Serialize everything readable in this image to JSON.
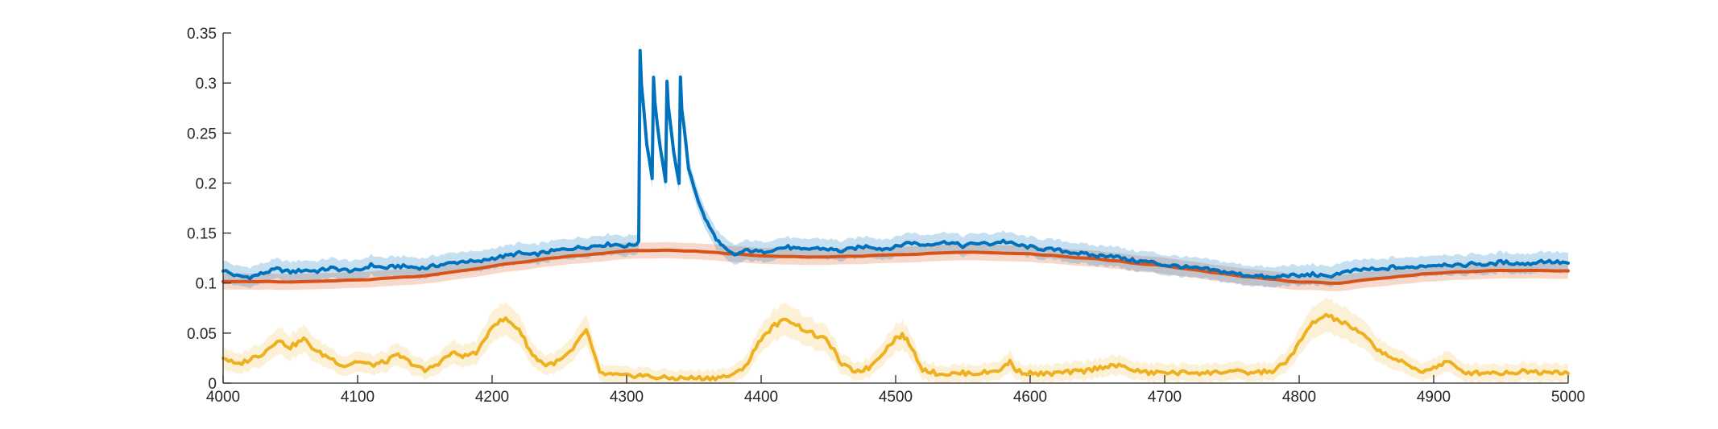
{
  "chart_data": {
    "type": "line",
    "title": "",
    "xlabel": "",
    "ylabel": "",
    "xlim": [
      4000,
      5000
    ],
    "ylim": [
      0,
      0.35
    ],
    "grid": false,
    "legend": "none",
    "x_ticks": [
      "4000",
      "4100",
      "4200",
      "4300",
      "4400",
      "4500",
      "4600",
      "4700",
      "4800",
      "4900",
      "5000"
    ],
    "y_ticks": [
      "0",
      "0.05",
      "0.1",
      "0.15",
      "0.2",
      "0.25",
      "0.3",
      "0.35"
    ],
    "series": [
      {
        "color": "#0072BD",
        "band_color": "#0072BD",
        "band_halfwidth": 0.01,
        "x": [
          4000,
          4010,
          4020,
          4030,
          4040,
          4050,
          4060,
          4070,
          4080,
          4090,
          4100,
          4110,
          4120,
          4130,
          4140,
          4150,
          4160,
          4170,
          4180,
          4190,
          4200,
          4210,
          4220,
          4230,
          4240,
          4250,
          4260,
          4270,
          4280,
          4290,
          4300,
          4309,
          4310,
          4311,
          4315,
          4319,
          4320,
          4321,
          4325,
          4329,
          4330,
          4331,
          4335,
          4339,
          4340,
          4341,
          4346,
          4350,
          4355,
          4360,
          4365,
          4370,
          4375,
          4380,
          4390,
          4400,
          4410,
          4420,
          4430,
          4440,
          4450,
          4460,
          4470,
          4480,
          4490,
          4500,
          4510,
          4520,
          4530,
          4540,
          4550,
          4560,
          4570,
          4580,
          4590,
          4600,
          4610,
          4620,
          4630,
          4640,
          4650,
          4660,
          4670,
          4680,
          4690,
          4700,
          4710,
          4720,
          4730,
          4740,
          4750,
          4760,
          4770,
          4780,
          4790,
          4800,
          4810,
          4820,
          4830,
          4840,
          4850,
          4860,
          4870,
          4880,
          4890,
          4900,
          4910,
          4920,
          4930,
          4940,
          4950,
          4960,
          4970,
          4980,
          4990,
          5000
        ],
        "y": [
          0.113,
          0.107,
          0.106,
          0.11,
          0.114,
          0.111,
          0.113,
          0.112,
          0.115,
          0.113,
          0.112,
          0.118,
          0.115,
          0.117,
          0.116,
          0.115,
          0.118,
          0.12,
          0.122,
          0.121,
          0.125,
          0.127,
          0.13,
          0.128,
          0.131,
          0.133,
          0.135,
          0.136,
          0.138,
          0.139,
          0.137,
          0.14,
          0.333,
          0.3,
          0.24,
          0.205,
          0.307,
          0.28,
          0.235,
          0.2,
          0.303,
          0.275,
          0.232,
          0.2,
          0.305,
          0.275,
          0.215,
          0.197,
          0.175,
          0.16,
          0.148,
          0.138,
          0.132,
          0.128,
          0.133,
          0.131,
          0.134,
          0.136,
          0.133,
          0.135,
          0.134,
          0.132,
          0.135,
          0.137,
          0.134,
          0.136,
          0.141,
          0.138,
          0.14,
          0.141,
          0.137,
          0.14,
          0.139,
          0.142,
          0.138,
          0.136,
          0.134,
          0.133,
          0.131,
          0.129,
          0.127,
          0.128,
          0.124,
          0.122,
          0.121,
          0.118,
          0.117,
          0.115,
          0.114,
          0.112,
          0.11,
          0.108,
          0.107,
          0.105,
          0.108,
          0.107,
          0.109,
          0.106,
          0.11,
          0.112,
          0.114,
          0.113,
          0.116,
          0.115,
          0.117,
          0.118,
          0.119,
          0.117,
          0.12,
          0.118,
          0.121,
          0.12,
          0.119,
          0.122,
          0.121,
          0.12
        ]
      },
      {
        "color": "#D95319",
        "band_color": "#D95319",
        "band_halfwidth": 0.008,
        "x": [
          4000,
          4050,
          4100,
          4150,
          4200,
          4250,
          4300,
          4330,
          4350,
          4400,
          4450,
          4500,
          4550,
          4600,
          4650,
          4700,
          4750,
          4800,
          4830,
          4850,
          4900,
          4950,
          5000
        ],
        "y": [
          0.102,
          0.101,
          0.103,
          0.107,
          0.117,
          0.126,
          0.132,
          0.133,
          0.132,
          0.127,
          0.126,
          0.128,
          0.131,
          0.129,
          0.124,
          0.117,
          0.108,
          0.101,
          0.1,
          0.103,
          0.11,
          0.113,
          0.112
        ]
      },
      {
        "color": "#EDB120",
        "band_color": "#EDB120",
        "band_halfwidth": 0.012,
        "x": [
          4000,
          4010,
          4020,
          4030,
          4040,
          4050,
          4060,
          4070,
          4080,
          4090,
          4100,
          4110,
          4120,
          4130,
          4140,
          4150,
          4160,
          4170,
          4180,
          4190,
          4200,
          4210,
          4220,
          4230,
          4240,
          4250,
          4260,
          4270,
          4280,
          4290,
          4300,
          4310,
          4320,
          4330,
          4340,
          4350,
          4360,
          4370,
          4380,
          4390,
          4400,
          4410,
          4420,
          4430,
          4440,
          4450,
          4460,
          4470,
          4480,
          4490,
          4500,
          4505,
          4510,
          4520,
          4530,
          4540,
          4550,
          4560,
          4570,
          4580,
          4585,
          4590,
          4600,
          4610,
          4620,
          4630,
          4640,
          4650,
          4660,
          4670,
          4680,
          4690,
          4700,
          4710,
          4720,
          4730,
          4740,
          4750,
          4760,
          4770,
          4780,
          4790,
          4800,
          4810,
          4820,
          4830,
          4840,
          4850,
          4860,
          4870,
          4880,
          4890,
          4900,
          4910,
          4920,
          4930,
          4940,
          4950,
          4960,
          4970,
          4980,
          4990,
          5000
        ],
        "y": [
          0.026,
          0.018,
          0.024,
          0.03,
          0.043,
          0.036,
          0.044,
          0.031,
          0.025,
          0.017,
          0.022,
          0.018,
          0.021,
          0.028,
          0.02,
          0.012,
          0.02,
          0.03,
          0.027,
          0.032,
          0.058,
          0.064,
          0.054,
          0.028,
          0.018,
          0.022,
          0.033,
          0.054,
          0.01,
          0.008,
          0.007,
          0.008,
          0.006,
          0.005,
          0.005,
          0.005,
          0.005,
          0.006,
          0.008,
          0.02,
          0.045,
          0.058,
          0.064,
          0.055,
          0.048,
          0.042,
          0.018,
          0.012,
          0.015,
          0.03,
          0.045,
          0.048,
          0.04,
          0.014,
          0.01,
          0.009,
          0.01,
          0.01,
          0.011,
          0.015,
          0.022,
          0.012,
          0.01,
          0.009,
          0.01,
          0.011,
          0.012,
          0.015,
          0.018,
          0.016,
          0.012,
          0.01,
          0.011,
          0.01,
          0.011,
          0.01,
          0.011,
          0.012,
          0.01,
          0.011,
          0.012,
          0.02,
          0.04,
          0.06,
          0.068,
          0.062,
          0.055,
          0.045,
          0.032,
          0.025,
          0.018,
          0.012,
          0.015,
          0.022,
          0.012,
          0.01,
          0.011,
          0.01,
          0.011,
          0.012,
          0.011,
          0.012,
          0.01
        ]
      }
    ]
  }
}
